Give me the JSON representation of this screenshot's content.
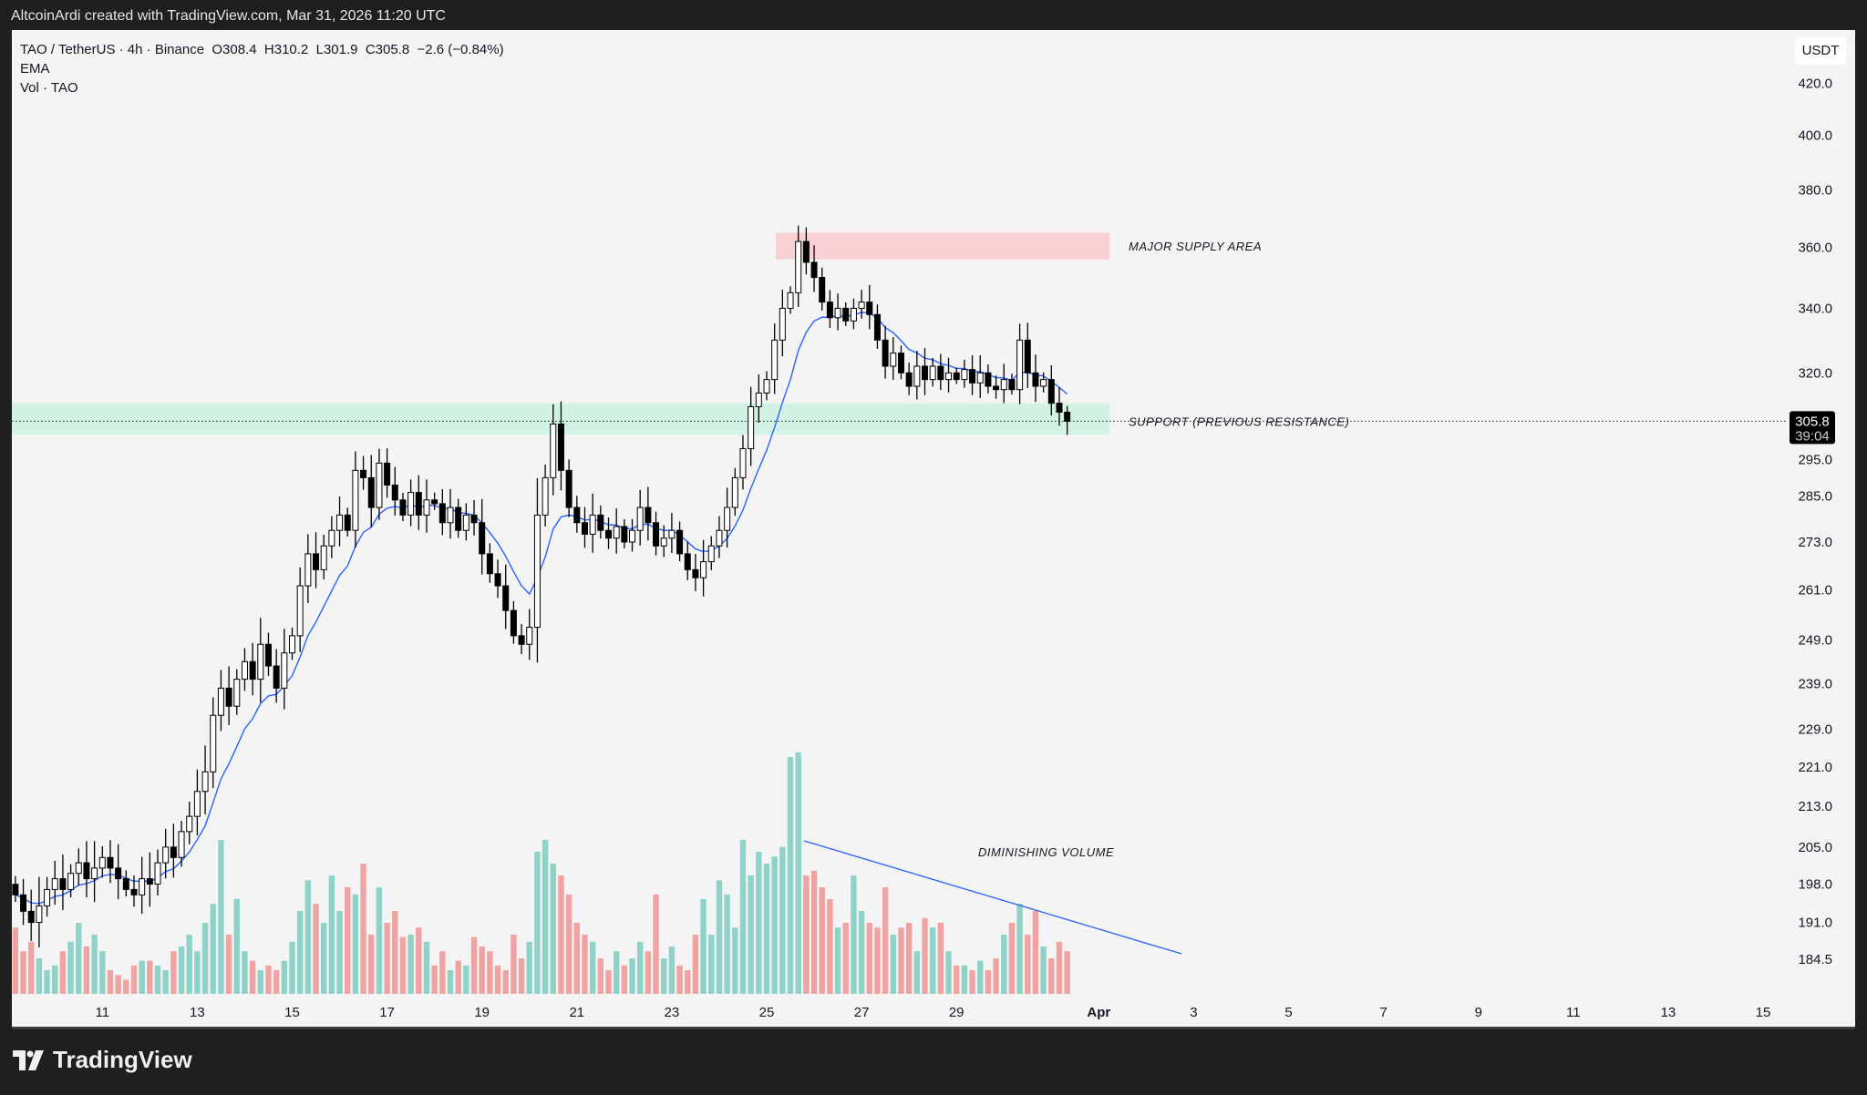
{
  "topbar": {
    "text": "AltcoinArdi created with TradingView.com, Mar 31, 2026 11:20 UTC"
  },
  "legend": {
    "symbol_line": "TAO / TetherUS · 4h · Binance  O308.4  H310.2  L301.9  C305.8  −2.6 (−0.84%)",
    "ema": "EMA",
    "vol": "Vol · TAO"
  },
  "price_axis": {
    "currency": "USDT",
    "last_price": "305.8",
    "countdown": "39:04"
  },
  "annotations": {
    "supply": "MAJOR SUPPLY AREA",
    "support": "SUPPORT (PREVIOUS RESISTANCE)",
    "volume": "DIMINISHING VOLUME"
  },
  "footer": {
    "brand": "TradingView"
  },
  "colors": {
    "up_volume": "#8fd3c8",
    "down_volume": "#f0a3a3",
    "ema": "#2962ff",
    "supply_zone": "#f8d0d3",
    "support_zone": "#d2f3e3",
    "candle": "#000000"
  },
  "chart_data": {
    "type": "candlestick",
    "title": "TAO / TetherUS · 4h · Binance",
    "scale": "log",
    "ylim": [
      180,
      430
    ],
    "y_ticks": [
      "420.0",
      "400.0",
      "380.0",
      "360.0",
      "340.0",
      "320.0",
      "295.0",
      "285.0",
      "273.0",
      "261.0",
      "249.0",
      "239.0",
      "229.0",
      "221.0",
      "213.0",
      "205.0",
      "198.0",
      "191.0",
      "184.5"
    ],
    "x_ticks": [
      {
        "label": "11",
        "day": 0
      },
      {
        "label": "13",
        "day": 2
      },
      {
        "label": "15",
        "day": 4
      },
      {
        "label": "17",
        "day": 6
      },
      {
        "label": "19",
        "day": 8
      },
      {
        "label": "21",
        "day": 10
      },
      {
        "label": "23",
        "day": 12
      },
      {
        "label": "25",
        "day": 14
      },
      {
        "label": "27",
        "day": 16
      },
      {
        "label": "29",
        "day": 18
      },
      {
        "label": "Apr",
        "day": 21
      },
      {
        "label": "3",
        "day": 23
      },
      {
        "label": "5",
        "day": 25
      },
      {
        "label": "7",
        "day": 27
      },
      {
        "label": "9",
        "day": 29
      },
      {
        "label": "11",
        "day": 31
      },
      {
        "label": "13",
        "day": 33
      },
      {
        "label": "15",
        "day": 35
      }
    ],
    "start": "Mar 9 04:00",
    "interval_hours": 4,
    "closes": [
      196,
      193,
      191,
      194,
      197,
      199,
      197,
      200,
      202,
      199,
      201,
      203,
      201,
      199,
      197,
      196,
      199,
      198,
      202,
      205,
      203,
      208,
      211,
      216,
      220,
      232,
      238,
      234,
      240,
      244,
      240,
      248,
      243,
      238,
      246,
      250,
      262,
      270,
      266,
      272,
      276,
      280,
      276,
      292,
      290,
      282,
      294,
      288,
      284,
      280,
      286,
      280,
      284,
      283,
      278,
      282,
      276,
      280,
      278,
      270,
      265,
      262,
      256,
      250,
      248,
      252,
      280,
      290,
      305,
      292,
      282,
      278,
      275,
      280,
      276,
      274,
      277,
      273,
      276,
      282,
      278,
      272,
      274,
      276,
      270,
      266,
      264,
      268,
      272,
      276,
      282,
      290,
      298,
      310,
      314,
      318,
      330,
      340,
      345,
      362,
      355,
      350,
      342,
      337,
      340,
      336,
      340,
      342,
      338,
      330,
      322,
      326,
      320,
      316,
      322,
      318,
      322,
      318,
      320,
      318,
      321,
      317,
      320,
      316,
      315,
      318,
      315,
      330,
      320,
      316,
      318,
      311,
      308.4,
      305.8
    ],
    "volumes": [
      28,
      18,
      22,
      15,
      10,
      12,
      18,
      22,
      30,
      20,
      25,
      18,
      10,
      8,
      6,
      12,
      14,
      14,
      12,
      10,
      18,
      20,
      25,
      18,
      30,
      38,
      65,
      25,
      40,
      18,
      14,
      10,
      12,
      10,
      14,
      22,
      35,
      48,
      38,
      30,
      50,
      35,
      45,
      42,
      55,
      25,
      45,
      30,
      35,
      24,
      25,
      28,
      22,
      12,
      18,
      10,
      14,
      12,
      24,
      20,
      18,
      12,
      10,
      25,
      15,
      22,
      60,
      65,
      55,
      50,
      42,
      30,
      25,
      22,
      15,
      10,
      18,
      12,
      15,
      22,
      18,
      42,
      15,
      20,
      12,
      10,
      25,
      40,
      25,
      48,
      42,
      28,
      65,
      50,
      60,
      55,
      58,
      62,
      100,
      102,
      50,
      52,
      45,
      40,
      28,
      30,
      50,
      35,
      30,
      28,
      45,
      25,
      28,
      30,
      18,
      32,
      28,
      30,
      18,
      12,
      12,
      10,
      14,
      10,
      15,
      25,
      30,
      38,
      25,
      35,
      20,
      15,
      22,
      18
    ],
    "ema_period": 9,
    "zones": [
      {
        "name": "supply",
        "low": 356,
        "high": 365
      },
      {
        "name": "support",
        "low": 302,
        "high": 311
      }
    ]
  }
}
